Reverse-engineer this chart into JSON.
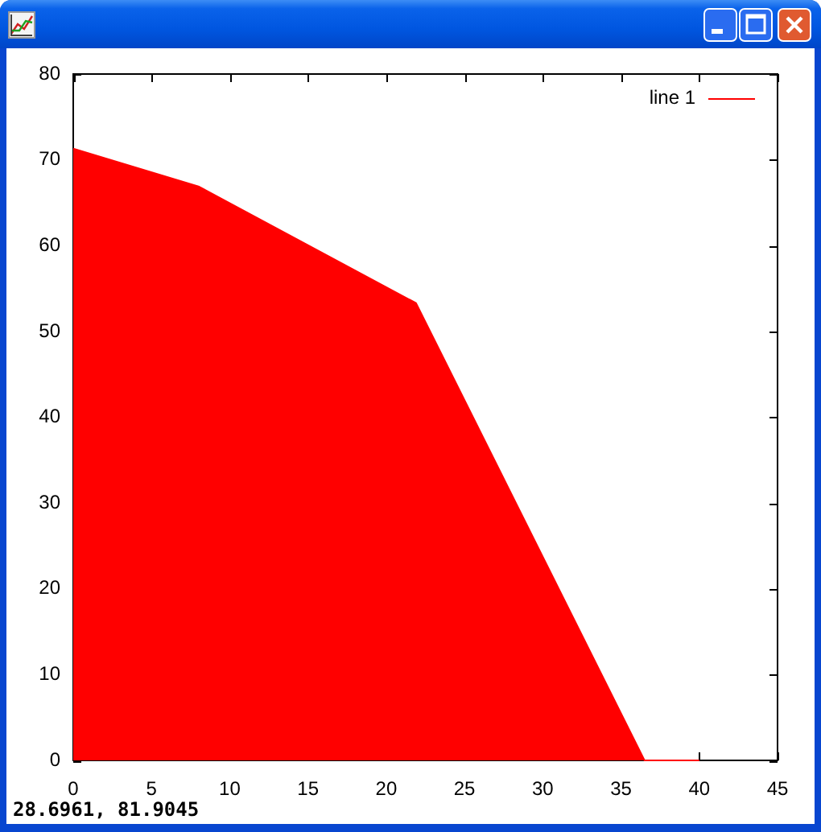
{
  "chart_data": {
    "type": "area",
    "x": [
      0,
      8,
      21.9,
      36.5,
      40
    ],
    "series": [
      {
        "name": "line 1",
        "color": "#ff0000",
        "values": [
          71.3,
          66.9,
          53.3,
          0,
          0
        ]
      }
    ],
    "xlim": [
      0,
      45
    ],
    "xticks": [
      0,
      5,
      10,
      15,
      20,
      25,
      30,
      35,
      40,
      45
    ],
    "ylim": [
      0,
      80
    ],
    "yticks": [
      0,
      10,
      20,
      30,
      40,
      50,
      60,
      70,
      80
    ],
    "legend": "top right",
    "annotations": [
      "28.6961, 81.9045"
    ]
  }
}
